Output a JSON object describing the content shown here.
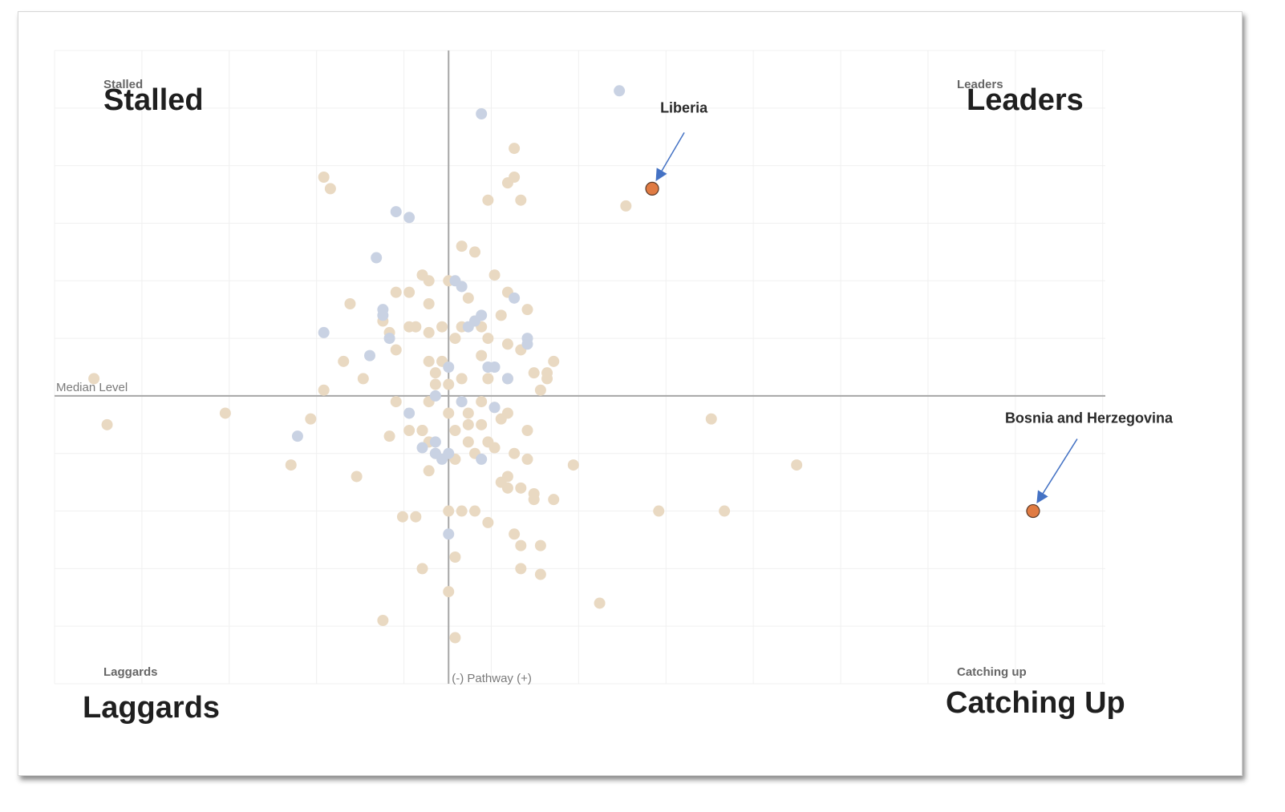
{
  "chart_data": {
    "type": "scatter",
    "xlabel": "(-) Pathway (+)",
    "median_label": "Median Level",
    "grid": true,
    "xlim": [
      -6,
      10
    ],
    "ylim": [
      -5,
      6
    ],
    "quadrants": {
      "top_left": {
        "small": "Stalled",
        "big": "Stalled"
      },
      "top_right": {
        "small": "Leaders",
        "big": "Leaders"
      },
      "bottom_left": {
        "small": "Laggards",
        "big": "Laggards"
      },
      "bottom_right": {
        "small": "Catching up",
        "big": "Catching Up"
      }
    },
    "colors": {
      "beige": "#e9d9c2",
      "blue": "#c9d2e3",
      "highlight": "#e07b43",
      "arrow": "#4472c4"
    },
    "highlights": [
      {
        "name": "Liberia",
        "x": 3.1,
        "y": 3.6
      },
      {
        "name": "Bosnia and Herzegovina",
        "x": 8.9,
        "y": -2.0
      }
    ],
    "series": [
      {
        "color_key": "beige",
        "points": [
          [
            -5.4,
            0.3
          ],
          [
            -5.2,
            -0.5
          ],
          [
            -3.4,
            -0.3
          ],
          [
            -1.9,
            3.8
          ],
          [
            -1.8,
            3.6
          ],
          [
            -1.9,
            0.1
          ],
          [
            -2.1,
            -0.4
          ],
          [
            -2.4,
            -1.2
          ],
          [
            -1.4,
            -1.4
          ],
          [
            -1.6,
            0.6
          ],
          [
            -1.5,
            1.6
          ],
          [
            -1.3,
            0.3
          ],
          [
            -1.0,
            1.3
          ],
          [
            -0.8,
            1.8
          ],
          [
            -0.9,
            1.1
          ],
          [
            -0.6,
            1.8
          ],
          [
            -0.6,
            1.2
          ],
          [
            -0.8,
            0.8
          ],
          [
            -0.9,
            -0.7
          ],
          [
            -0.8,
            -0.1
          ],
          [
            -0.6,
            -0.6
          ],
          [
            -0.5,
            1.2
          ],
          [
            -0.4,
            2.1
          ],
          [
            -0.3,
            2.0
          ],
          [
            -0.3,
            1.6
          ],
          [
            -0.3,
            0.6
          ],
          [
            -0.2,
            0.2
          ],
          [
            -0.3,
            1.1
          ],
          [
            -0.4,
            -0.6
          ],
          [
            -0.5,
            -2.1
          ],
          [
            -0.3,
            -1.3
          ],
          [
            -0.1,
            0.6
          ],
          [
            -0.1,
            1.2
          ],
          [
            0.0,
            0.2
          ],
          [
            0.0,
            2.0
          ],
          [
            0.0,
            -0.3
          ],
          [
            0.1,
            -0.6
          ],
          [
            0.1,
            -1.1
          ],
          [
            -0.2,
            -1.0
          ],
          [
            -0.3,
            -0.8
          ],
          [
            -0.4,
            -0.6
          ],
          [
            -0.3,
            -0.1
          ],
          [
            -0.2,
            0.4
          ],
          [
            0.2,
            1.2
          ],
          [
            0.1,
            1.0
          ],
          [
            0.2,
            0.3
          ],
          [
            0.2,
            -0.1
          ],
          [
            0.3,
            -0.3
          ],
          [
            0.3,
            -0.5
          ],
          [
            0.3,
            -0.8
          ],
          [
            0.4,
            -1.0
          ],
          [
            0.2,
            2.6
          ],
          [
            0.4,
            2.5
          ],
          [
            0.3,
            1.7
          ],
          [
            0.4,
            1.3
          ],
          [
            0.5,
            1.2
          ],
          [
            0.5,
            0.7
          ],
          [
            0.6,
            0.3
          ],
          [
            0.7,
            -0.2
          ],
          [
            0.5,
            -0.5
          ],
          [
            0.6,
            -0.8
          ],
          [
            0.7,
            -0.9
          ],
          [
            0.5,
            -0.1
          ],
          [
            0.7,
            2.1
          ],
          [
            0.9,
            1.8
          ],
          [
            0.6,
            1.0
          ],
          [
            0.8,
            1.4
          ],
          [
            0.9,
            0.9
          ],
          [
            0.9,
            0.3
          ],
          [
            0.8,
            -0.4
          ],
          [
            0.9,
            -0.3
          ],
          [
            1.0,
            -1.0
          ],
          [
            1.2,
            -0.6
          ],
          [
            0.9,
            -1.4
          ],
          [
            0.8,
            -1.5
          ],
          [
            1.1,
            -1.6
          ],
          [
            0.6,
            3.4
          ],
          [
            0.9,
            3.7
          ],
          [
            1.0,
            3.8
          ],
          [
            1.0,
            4.3
          ],
          [
            1.1,
            3.4
          ],
          [
            1.2,
            1.5
          ],
          [
            1.1,
            0.8
          ],
          [
            1.3,
            0.4
          ],
          [
            1.5,
            0.3
          ],
          [
            1.4,
            0.1
          ],
          [
            1.6,
            0.6
          ],
          [
            1.5,
            0.4
          ],
          [
            1.6,
            -1.8
          ],
          [
            1.3,
            -1.7
          ],
          [
            1.2,
            -1.1
          ],
          [
            1.3,
            -1.8
          ],
          [
            1.4,
            -2.6
          ],
          [
            1.4,
            -3.1
          ],
          [
            1.9,
            -1.2
          ],
          [
            2.3,
            -3.6
          ],
          [
            2.7,
            3.3
          ],
          [
            4.0,
            -0.4
          ],
          [
            5.3,
            -1.2
          ],
          [
            4.2,
            -2.0
          ],
          [
            3.2,
            -2.0
          ],
          [
            -0.7,
            -2.1
          ],
          [
            -0.4,
            -3.0
          ],
          [
            0.1,
            -2.8
          ],
          [
            0.0,
            -3.4
          ],
          [
            -1.0,
            -3.9
          ],
          [
            0.1,
            -4.2
          ],
          [
            1.0,
            -2.4
          ],
          [
            0.6,
            -2.2
          ],
          [
            0.4,
            -2.0
          ],
          [
            0.2,
            -2.0
          ],
          [
            0.0,
            -2.0
          ],
          [
            1.1,
            -3.0
          ],
          [
            1.1,
            -2.6
          ],
          [
            0.9,
            -1.6
          ]
        ]
      },
      {
        "color_key": "blue",
        "points": [
          [
            2.6,
            5.3
          ],
          [
            0.5,
            4.9
          ],
          [
            -0.8,
            3.2
          ],
          [
            -0.6,
            3.1
          ],
          [
            -1.1,
            2.4
          ],
          [
            -1.9,
            1.1
          ],
          [
            -1.0,
            1.5
          ],
          [
            -1.0,
            1.4
          ],
          [
            -0.9,
            1.0
          ],
          [
            -1.2,
            0.7
          ],
          [
            0.1,
            2.0
          ],
          [
            0.2,
            1.9
          ],
          [
            0.3,
            1.2
          ],
          [
            0.4,
            1.3
          ],
          [
            0.5,
            1.4
          ],
          [
            1.0,
            1.7
          ],
          [
            1.2,
            1.0
          ],
          [
            1.2,
            0.9
          ],
          [
            0.6,
            0.5
          ],
          [
            0.7,
            0.5
          ],
          [
            0.9,
            0.3
          ],
          [
            0.0,
            0.5
          ],
          [
            -0.2,
            0.0
          ],
          [
            0.2,
            -0.1
          ],
          [
            -0.6,
            -0.3
          ],
          [
            -0.2,
            -0.8
          ],
          [
            -0.4,
            -0.9
          ],
          [
            -0.2,
            -1.0
          ],
          [
            -0.1,
            -1.1
          ],
          [
            0.0,
            -1.0
          ],
          [
            0.5,
            -1.1
          ],
          [
            0.7,
            -0.2
          ],
          [
            0.0,
            -2.4
          ],
          [
            -2.3,
            -0.7
          ]
        ]
      }
    ]
  }
}
